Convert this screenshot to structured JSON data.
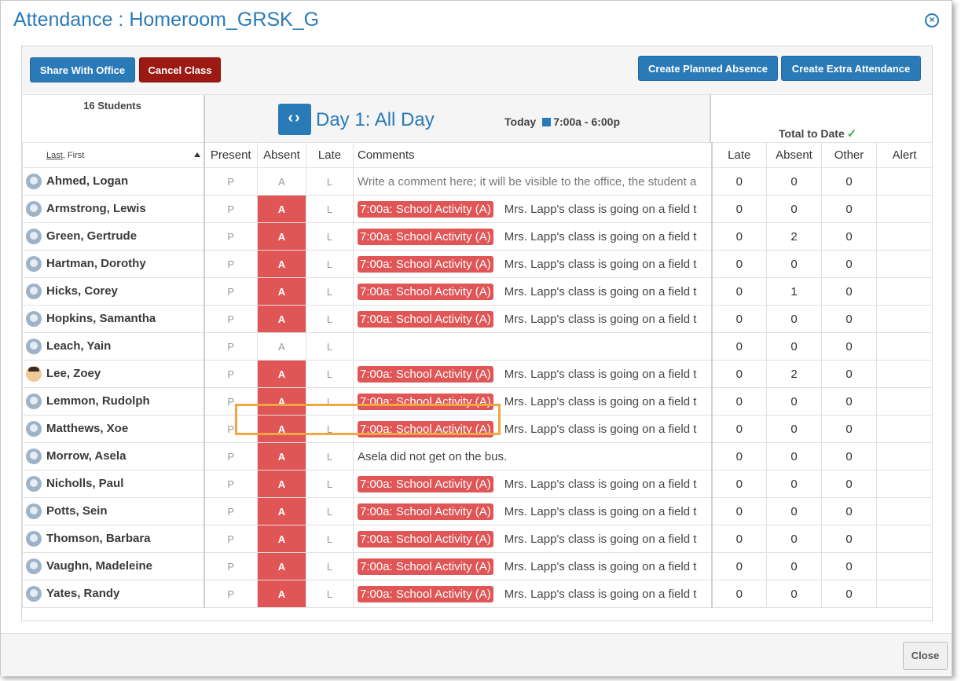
{
  "title": "Attendance : Homeroom_GRSK_G",
  "toolbar": {
    "share": "Share With Office",
    "cancel": "Cancel Class",
    "planned": "Create Planned Absence",
    "extra": "Create Extra Attendance"
  },
  "header": {
    "students": "16 Students",
    "day": "Day 1: All Day",
    "today": "Today",
    "time": "7:00a - 6:00p",
    "total": "Total to Date"
  },
  "columns": {
    "last": "Last",
    "first": ", First",
    "present": "Present",
    "absent": "Absent",
    "late": "Late",
    "comments": "Comments",
    "t_late": "Late",
    "t_absent": "Absent",
    "t_other": "Other",
    "t_alert": "Alert"
  },
  "marks": {
    "p": "P",
    "a": "A",
    "l": "L"
  },
  "badge": "7:00a: School Activity (A)",
  "field_trip": "Mrs. Lapp's class is going on a field t",
  "placeholder": "Write a comment here; it will be visible to the office, the student a",
  "rows": [
    {
      "name": "Ahmed, Logan",
      "comment": "placeholder",
      "late": "0",
      "absent": "0",
      "other": "0"
    },
    {
      "name": "Armstrong, Lewis",
      "late": "0",
      "absent": "0",
      "other": "0"
    },
    {
      "name": "Green, Gertrude",
      "late": "0",
      "absent": "2",
      "other": "0"
    },
    {
      "name": "Hartman, Dorothy",
      "late": "0",
      "absent": "0",
      "other": "0"
    },
    {
      "name": "Hicks, Corey",
      "late": "0",
      "absent": "1",
      "other": "0"
    },
    {
      "name": "Hopkins, Samantha",
      "late": "0",
      "absent": "0",
      "other": "0"
    },
    {
      "name": "Leach, Yain",
      "late": "0",
      "absent": "0",
      "other": "0"
    },
    {
      "name": "Lee, Zoey",
      "late": "0",
      "absent": "2",
      "other": "0"
    },
    {
      "name": "Lemmon, Rudolph",
      "late": "0",
      "absent": "0",
      "other": "0"
    },
    {
      "name": "Matthews, Xoe",
      "late": "0",
      "absent": "0",
      "other": "0"
    },
    {
      "name": "Morrow, Asela",
      "comment": "Asela did not get on the bus.",
      "late": "0",
      "absent": "0",
      "other": "0"
    },
    {
      "name": "Nicholls, Paul",
      "late": "0",
      "absent": "0",
      "other": "0"
    },
    {
      "name": "Potts, Sein",
      "late": "0",
      "absent": "0",
      "other": "0"
    },
    {
      "name": "Thomson, Barbara",
      "late": "0",
      "absent": "0",
      "other": "0"
    },
    {
      "name": "Vaughn, Madeleine",
      "late": "0",
      "absent": "0",
      "other": "0"
    },
    {
      "name": "Yates, Randy",
      "late": "0",
      "absent": "0",
      "other": "0"
    }
  ],
  "footer": {
    "close": "Close"
  }
}
